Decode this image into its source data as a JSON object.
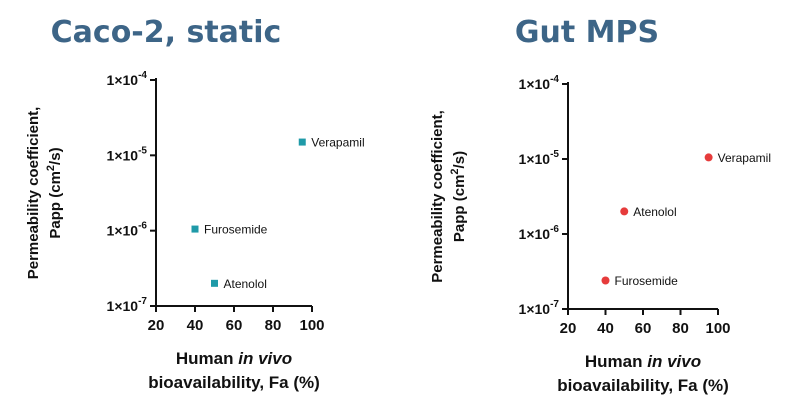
{
  "chart_data": [
    {
      "type": "scatter",
      "title": "Caco-2, static",
      "ylabel_line1": "Permeability coefficient,",
      "ylabel_line2_prefix": "Papp (cm",
      "ylabel_line2_sup": "2",
      "ylabel_line2_suffix": "/s)",
      "xlabel_line1_prefix": "Human ",
      "xlabel_line1_italic": "in vivo",
      "xlabel_line2": "bioavailability, Fa (%)",
      "xlim": [
        20,
        100
      ],
      "ylim": [
        1e-07,
        0.0001
      ],
      "yscale": "log",
      "xticks": [
        "20",
        "40",
        "60",
        "80",
        "100"
      ],
      "yticks": [
        {
          "base": "1×10",
          "exp": "-7"
        },
        {
          "base": "1×10",
          "exp": "-6"
        },
        {
          "base": "1×10",
          "exp": "-5"
        },
        {
          "base": "1×10",
          "exp": "-4"
        }
      ],
      "marker": "square",
      "color": "#1f9aa8",
      "points": [
        {
          "name": "Verapamil",
          "x": 95,
          "y": 1.5e-05
        },
        {
          "name": "Furosemide",
          "x": 40,
          "y": 1.05e-06
        },
        {
          "name": "Atenolol",
          "x": 50,
          "y": 2e-07
        }
      ]
    },
    {
      "type": "scatter",
      "title": "Gut MPS",
      "ylabel_line1": "Permeability coefficient,",
      "ylabel_line2_prefix": "Papp (cm",
      "ylabel_line2_sup": "2",
      "ylabel_line2_suffix": "/s)",
      "xlabel_line1_prefix": "Human ",
      "xlabel_line1_italic": "in vivo",
      "xlabel_line2": "bioavailability, Fa (%)",
      "xlim": [
        20,
        100
      ],
      "ylim": [
        1e-07,
        0.0001
      ],
      "yscale": "log",
      "xticks": [
        "20",
        "40",
        "60",
        "80",
        "100"
      ],
      "yticks": [
        {
          "base": "1×10",
          "exp": "-7"
        },
        {
          "base": "1×10",
          "exp": "-6"
        },
        {
          "base": "1×10",
          "exp": "-5"
        },
        {
          "base": "1×10",
          "exp": "-4"
        }
      ],
      "marker": "circle",
      "color": "#e63b3b",
      "points": [
        {
          "name": "Verapamil",
          "x": 95,
          "y": 1.05e-05
        },
        {
          "name": "Atenolol",
          "x": 50,
          "y": 2e-06
        },
        {
          "name": "Furosemide",
          "x": 40,
          "y": 2.4e-07
        }
      ]
    }
  ]
}
